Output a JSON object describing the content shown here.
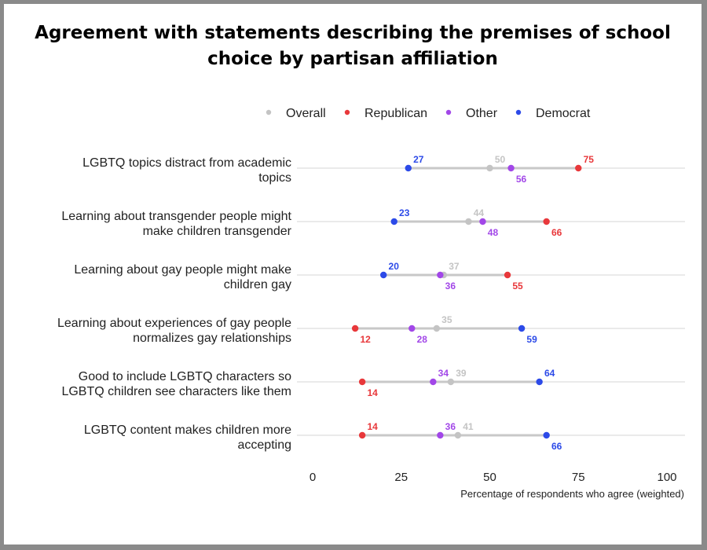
{
  "chart_data": {
    "type": "scatter",
    "title_lines": [
      "Agreement with statements describing the premises of school",
      "choice by partisan affiliation"
    ],
    "xlabel": "Percentage of respondents who agree (weighted)",
    "xlim": [
      0,
      100
    ],
    "xticks": [
      0,
      25,
      50,
      75,
      100
    ],
    "grid": false,
    "legend_position": "top",
    "series": [
      {
        "name": "Overall",
        "color": "#c4c4c4",
        "values": [
          50,
          44,
          37,
          35,
          39,
          41
        ]
      },
      {
        "name": "Republican",
        "color": "#e8383b",
        "values": [
          75,
          66,
          55,
          12,
          14,
          14
        ]
      },
      {
        "name": "Other",
        "color": "#a247e8",
        "values": [
          56,
          48,
          36,
          28,
          34,
          36
        ]
      },
      {
        "name": "Democrat",
        "color": "#2c4ae8",
        "values": [
          27,
          23,
          20,
          59,
          64,
          66
        ]
      }
    ],
    "categories": [
      [
        "LGBTQ topics distract from academic",
        "topics"
      ],
      [
        "Learning about transgender people might",
        "make children transgender"
      ],
      [
        "Learning about gay people might make",
        "children gay"
      ],
      [
        "Learning about experiences of gay people",
        "normalizes gay relationships"
      ],
      [
        "Good to include LGBTQ characters so",
        "LGBTQ children see characters like them"
      ],
      [
        "LGBTQ content makes children more",
        "accepting"
      ]
    ],
    "label_positions": [
      {
        "Overall": "above",
        "Republican": "above",
        "Other": "below",
        "Democrat": "above"
      },
      {
        "Overall": "above",
        "Republican": "below",
        "Other": "below",
        "Democrat": "above"
      },
      {
        "Overall": "above",
        "Republican": "below",
        "Other": "below",
        "Democrat": "above"
      },
      {
        "Overall": "above",
        "Republican": "below",
        "Other": "below",
        "Democrat": "below"
      },
      {
        "Overall": "above",
        "Republican": "below",
        "Other": "above",
        "Democrat": "above"
      },
      {
        "Overall": "above",
        "Republican": "above",
        "Other": "above",
        "Democrat": "below"
      }
    ]
  }
}
